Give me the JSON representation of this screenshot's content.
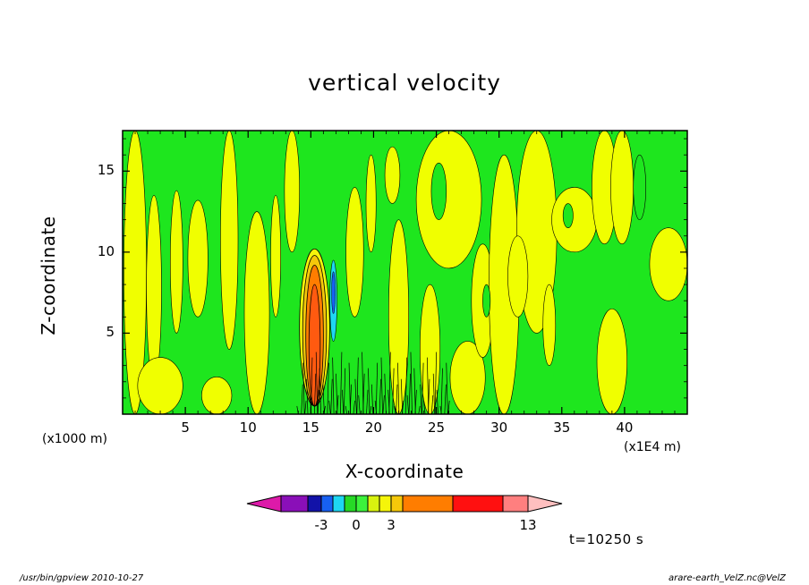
{
  "chart_data": {
    "type": "heatmap",
    "title": "vertical velocity",
    "xlabel": "X-coordinate",
    "ylabel": "Z-coordinate",
    "x_unit_left": "(x1000 m)",
    "x_unit_right": "(x1E4 m)",
    "x_range": [
      0,
      45
    ],
    "y_range": [
      0,
      17.5
    ],
    "x_ticks": [
      "5",
      "10",
      "15",
      "20",
      "25",
      "30",
      "35",
      "40"
    ],
    "y_ticks": [
      "5",
      "10",
      "15"
    ],
    "colorbar": {
      "colors": [
        "#dd1aa9",
        "#8a0fb8",
        "#1212a8",
        "#1760f2",
        "#1ed6f2",
        "#26d926",
        "#3cf23c",
        "#d8f20f",
        "#f5f50a",
        "#f5c80a",
        "#ff7d00",
        "#ff1010",
        "#ff7f7f",
        "#ffbfbf"
      ],
      "tick_labels": [
        "-3",
        "0",
        "3",
        "13"
      ]
    },
    "field": {
      "dominant_colors": {
        "positive_weak": "#f0ff00",
        "negative_weak": "#1ee61e"
      },
      "updraft_core_x": 15.3,
      "updraft_core_top_z": 9.8,
      "downdraft_core_x": 16.8
    },
    "time_label": "t=10250 s"
  },
  "footer": {
    "left": "/usr/bin/gpview   2010-10-27",
    "right": "arare-earth_VelZ.nc@VelZ"
  }
}
